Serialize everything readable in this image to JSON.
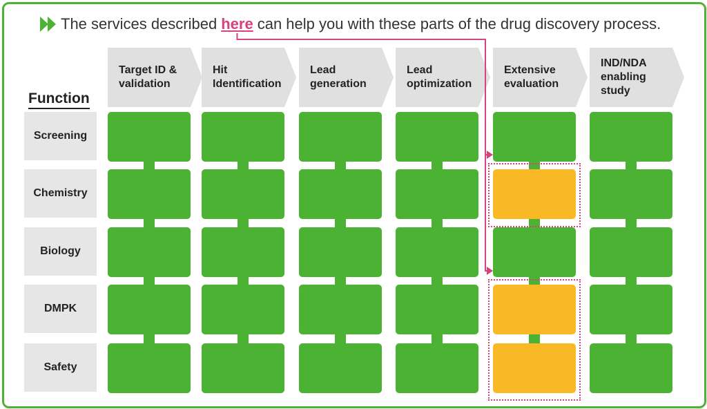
{
  "intro": {
    "text_before": "The services described",
    "link_text": "here",
    "text_after": "can help you with these parts of the drug discovery process.",
    "icon": "double-play-icon"
  },
  "stages": [
    {
      "label": "Target ID &\nvalidation"
    },
    {
      "label": "Hit\nIdentification"
    },
    {
      "label": "Lead\ngeneration"
    },
    {
      "label": "Lead\noptimization"
    },
    {
      "label": "Extensive\nevaluation"
    },
    {
      "label": "IND/NDA\nenabling\nstudy"
    }
  ],
  "function_title": "Function",
  "functions": [
    {
      "label": "Screening"
    },
    {
      "label": "Chemistry"
    },
    {
      "label": "Biology"
    },
    {
      "label": "DMPK"
    },
    {
      "label": "Safety"
    }
  ],
  "highlighted_cells": [
    {
      "stage": "Extensive evaluation",
      "function": "Chemistry"
    },
    {
      "stage": "Extensive evaluation",
      "function": "DMPK"
    },
    {
      "stage": "Extensive evaluation",
      "function": "Safety"
    }
  ],
  "colors": {
    "green": "#4cb233",
    "highlight": "#f9b927",
    "link": "#d6417f",
    "stage_arrow": "#e0e0e0",
    "label_bg": "#e6e6e6"
  }
}
